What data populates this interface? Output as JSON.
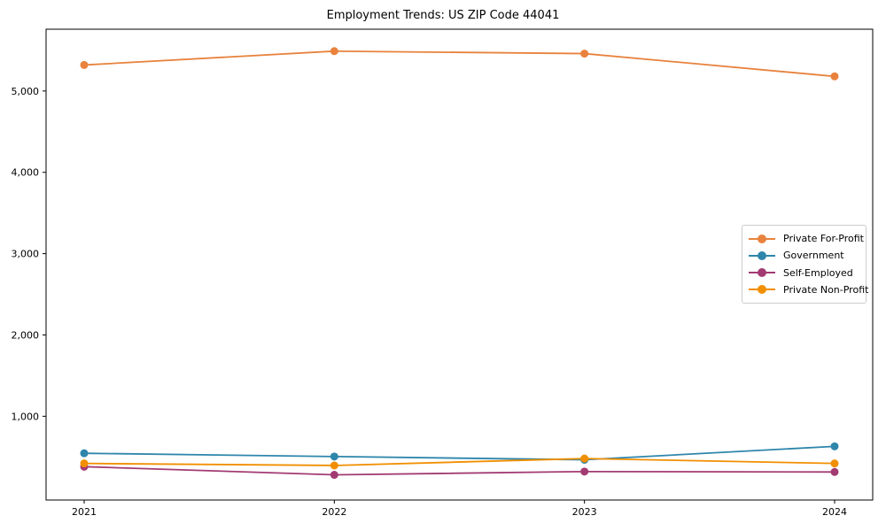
{
  "chart_data": {
    "type": "line",
    "title": "Employment Trends: US ZIP Code 44041",
    "xlabel": "",
    "ylabel": "",
    "x": [
      "2021",
      "2022",
      "2023",
      "2024"
    ],
    "series": [
      {
        "name": "Private For-Profit",
        "color": "#E8823D",
        "values": [
          5320,
          5490,
          5460,
          5180
        ]
      },
      {
        "name": "Government",
        "color": "#2E86AB",
        "values": [
          545,
          505,
          465,
          630
        ]
      },
      {
        "name": "Self-Employed",
        "color": "#A23B72",
        "values": [
          380,
          280,
          320,
          315
        ]
      },
      {
        "name": "Private Non-Profit",
        "color": "#F18F01",
        "values": [
          420,
          395,
          480,
          420
        ]
      }
    ],
    "ylim": [
      -30,
      5760
    ],
    "yticks": [
      1000,
      2000,
      3000,
      4000,
      5000
    ],
    "ytick_labels": [
      "1,000",
      "2,000",
      "3,000",
      "4,000",
      "5,000"
    ],
    "grid": false,
    "legend_position": "center-right",
    "axis_color": "#000000",
    "background_color": "#ffffff"
  }
}
